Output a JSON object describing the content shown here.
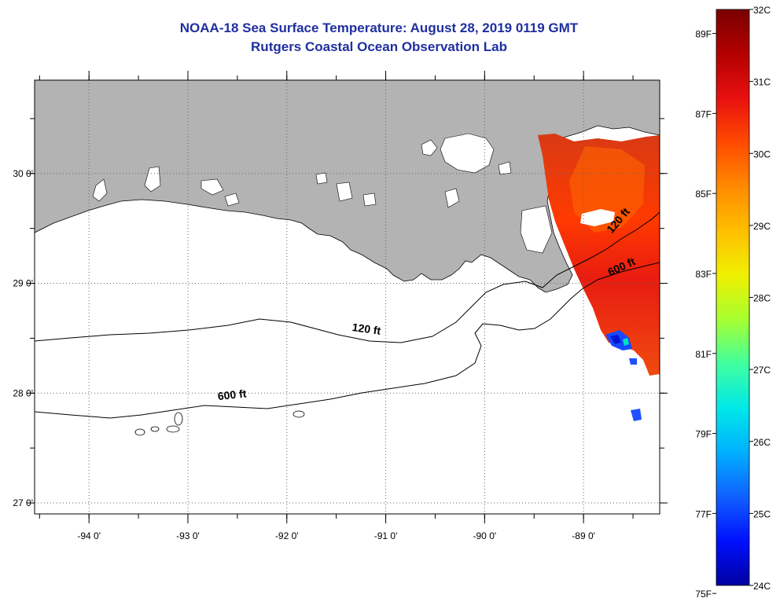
{
  "title": "NOAA-18 Sea Surface Temperature:  August 28, 2019 0119 GMT",
  "subtitle": "Rutgers Coastal Ocean Observation Lab",
  "map": {
    "lon_range": [
      -94.55,
      -88.23
    ],
    "lat_range": [
      26.9,
      30.85
    ],
    "lon_ticks": [
      {
        "value": -94,
        "label": "-94 0'"
      },
      {
        "value": -93,
        "label": "-93 0'"
      },
      {
        "value": -92,
        "label": "-92 0'"
      },
      {
        "value": -91,
        "label": "-91 0'"
      },
      {
        "value": -90,
        "label": "-90 0'"
      },
      {
        "value": -89,
        "label": "-89 0'"
      }
    ],
    "lat_ticks": [
      {
        "value": 30,
        "label": "30 0'"
      },
      {
        "value": 29,
        "label": "29 0'"
      },
      {
        "value": 28,
        "label": "28 0'"
      },
      {
        "value": 27,
        "label": "27 0'"
      }
    ],
    "land_color": "#b3b3b3",
    "contours": [
      {
        "label": "120 ft",
        "label_lon": -91.2,
        "label_lat": 28.55
      },
      {
        "label": "600 ft",
        "label_lon": -92.55,
        "label_lat": 27.95
      },
      {
        "label": "120 ft",
        "label_lon": -88.62,
        "label_lat": 29.55
      },
      {
        "label": "600 ft",
        "label_lon": -88.6,
        "label_lat": 29.12
      }
    ]
  },
  "colorbar": {
    "celsius_labels": [
      "32C",
      "31C",
      "30C",
      "29C",
      "28C",
      "27C",
      "26C",
      "25C",
      "24C"
    ],
    "fahrenheit_labels": [
      "89F",
      "87F",
      "85F",
      "83F",
      "81F",
      "79F",
      "77F",
      "75F"
    ],
    "colors": [
      "#7a0000",
      "#b30000",
      "#e81010",
      "#ff4a00",
      "#ff8a00",
      "#ffbf00",
      "#f0f000",
      "#a6ff30",
      "#40ffa0",
      "#00e8e8",
      "#00b0ff",
      "#1060ff",
      "#0010ff",
      "#0000a0"
    ]
  }
}
